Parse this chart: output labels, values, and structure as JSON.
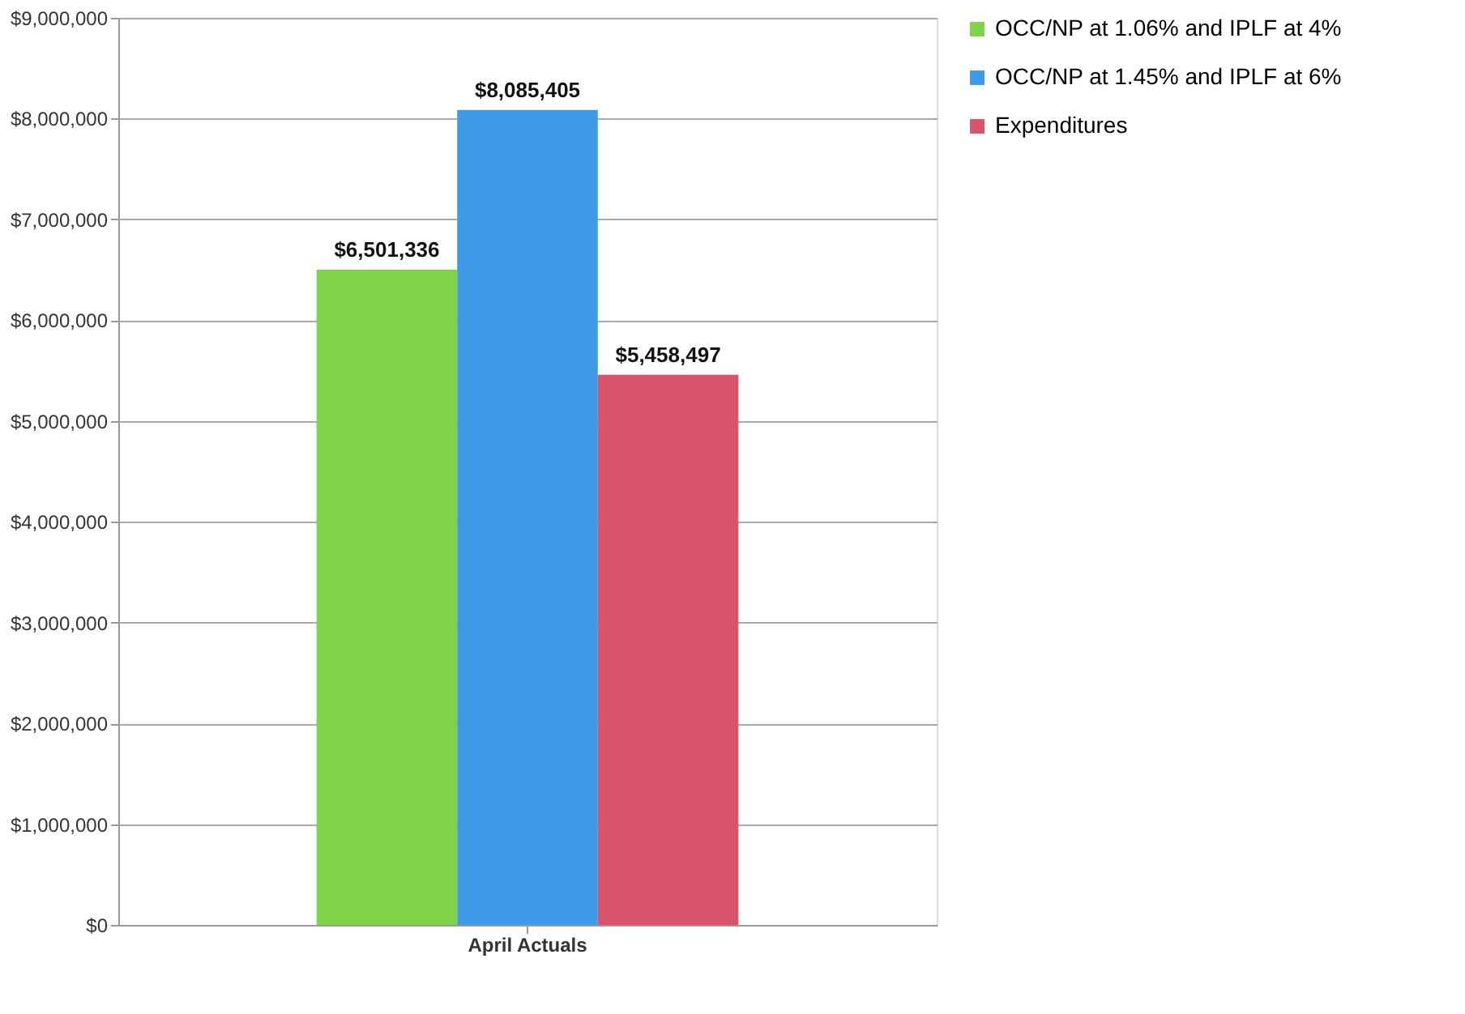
{
  "chart_data": {
    "type": "bar",
    "categories": [
      "April    Actuals"
    ],
    "series": [
      {
        "name": "OCC/NP at 1.06% and IPLF at 4%",
        "color": "#7fd34a",
        "values": [
          6501336
        ]
      },
      {
        "name": "OCC/NP at 1.45% and IPLF at 6%",
        "color": "#3f9ae8",
        "values": [
          8085405
        ]
      },
      {
        "name": "Expenditures",
        "color": "#d9536b",
        "values": [
          5458497
        ]
      }
    ],
    "ylim": [
      0,
      9000000
    ],
    "yticks": [
      {
        "value": 0,
        "label": "$0"
      },
      {
        "value": 1000000,
        "label": "$1,000,000"
      },
      {
        "value": 2000000,
        "label": "$2,000,000"
      },
      {
        "value": 3000000,
        "label": "$3,000,000"
      },
      {
        "value": 4000000,
        "label": "$4,000,000"
      },
      {
        "value": 5000000,
        "label": "$5,000,000"
      },
      {
        "value": 6000000,
        "label": "$6,000,000"
      },
      {
        "value": 7000000,
        "label": "$7,000,000"
      },
      {
        "value": 8000000,
        "label": "$8,000,000"
      },
      {
        "value": 9000000,
        "label": "$9,000,000"
      }
    ],
    "value_labels": [
      "$6,501,336",
      "$8,085,405",
      "$5,458,497"
    ],
    "grid": "y",
    "legend": "right"
  }
}
